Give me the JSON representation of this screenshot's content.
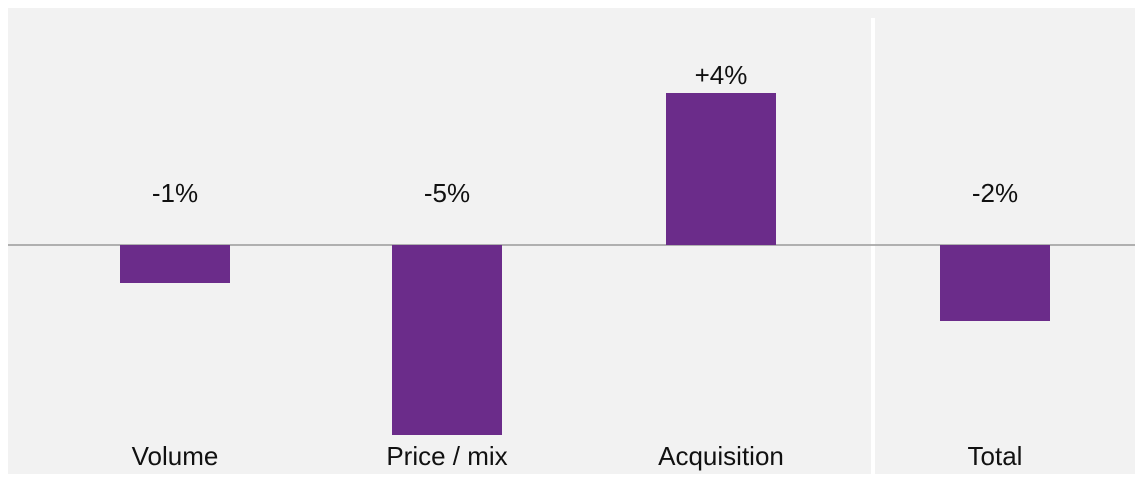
{
  "chart_data": {
    "type": "bar",
    "categories": [
      "Volume",
      "Price / mix",
      "Acquisition",
      "Total"
    ],
    "values": [
      -1,
      -5,
      4,
      -2
    ],
    "value_labels": [
      "-1%",
      "-5%",
      "+4%",
      "-2%"
    ],
    "color": "#6b2c8a"
  }
}
